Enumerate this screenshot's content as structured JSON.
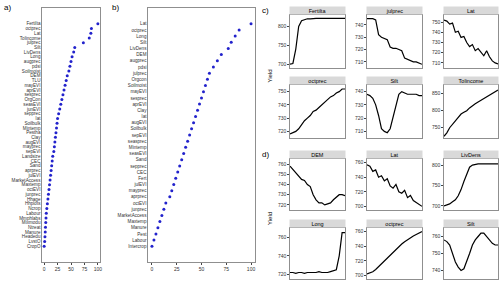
{
  "chart_data": [
    {
      "type": "dot",
      "title": "a)",
      "orientation": "horizontal",
      "color": "#2222cc",
      "marker": "circle",
      "grid": false,
      "categories": [
        "Fertilta",
        "octprec",
        "Lat",
        "Tolincome",
        "julprec",
        "Silt",
        "LivDens",
        "Long",
        "augprec",
        "pdsi",
        "Soilmoist",
        "DEM",
        "TLU",
        "mayEVI",
        "aprEVI",
        "sesprec",
        "OrgCon",
        "seasEVI",
        "junEVI",
        "sepprec",
        "lat",
        "Soilbulk",
        "Mintemp",
        "Pestha",
        "Clay",
        "augEVI",
        "mayprec",
        "sepEVI",
        "Landsize",
        "CEC",
        "Sand",
        "aprprec",
        "julEVI",
        "MarketAccess",
        "Maxtemp",
        "octEVI",
        "junprec",
        "Hhage",
        "Hhplots",
        "Ncrop",
        "Labour",
        "Mmphlabs",
        "Mixmodu",
        "Ntreat",
        "Manure",
        "Headedu",
        "LvstO",
        "CropO"
      ],
      "values": [
        100,
        88,
        87,
        84,
        73,
        57,
        55,
        52,
        50,
        48,
        46,
        43,
        41,
        39,
        37,
        35,
        33,
        31,
        29,
        27,
        25,
        24,
        23,
        22,
        21,
        20,
        19,
        18,
        16,
        15,
        14,
        13,
        12,
        11,
        10,
        9,
        8,
        7,
        6,
        5,
        4,
        3.5,
        3,
        2.5,
        2,
        1.5,
        1,
        0
      ],
      "xlim": [
        -4,
        104
      ],
      "xticks": [
        0,
        25,
        50,
        75,
        100
      ]
    },
    {
      "type": "dot",
      "title": "b)",
      "orientation": "horizontal",
      "color": "#2222cc",
      "marker": "circle",
      "grid": false,
      "categories": [
        "Lat",
        "octprec",
        "Long",
        "Silt",
        "LivDens",
        "DEM",
        "augprec",
        "pdsi",
        "julprec",
        "Orgcon",
        "Soilmoist",
        "mayEVI",
        "sesprec",
        "aprEVI",
        "Clay",
        "lat",
        "augEVI",
        "Soilbulk",
        "sepEVI",
        "seasprec",
        "Mintemp",
        "seasEVI",
        "Sand",
        "sepprec",
        "CEC",
        "Fert",
        "julEVI",
        "mayprec",
        "aprprec",
        "octEVI",
        "junprec",
        "MarketAccess",
        "Maxtemp",
        "Manure",
        "Pest",
        "Labour",
        "Intercrop"
      ],
      "values": [
        100,
        88,
        84,
        80,
        77,
        70,
        66,
        62,
        58,
        56,
        54,
        52,
        50,
        48,
        46,
        44,
        42,
        40,
        38,
        36,
        34,
        32,
        30,
        28,
        26,
        24,
        22,
        20,
        18,
        14,
        12,
        10,
        8,
        6,
        4,
        2,
        0
      ],
      "xlim": [
        -4,
        104
      ],
      "xticks": [
        0,
        25,
        50,
        75,
        100
      ]
    },
    {
      "type": "line",
      "title": "c)",
      "ylabel": "Yield",
      "color": "#000000",
      "tick_labels": "y",
      "grid": false,
      "panels": [
        {
          "name": "Fertilta",
          "values": [
            700,
            702,
            740,
            800,
            815,
            818,
            820,
            820,
            821,
            821,
            821,
            821,
            821,
            821,
            821,
            821,
            821,
            821,
            821,
            821
          ],
          "ylim": [
            690,
            830
          ],
          "yticks": [
            700,
            750,
            800
          ]
        },
        {
          "name": "julprec",
          "values": [
            745,
            745,
            745,
            744,
            732,
            730,
            729,
            728,
            722,
            721,
            721,
            720,
            719,
            713,
            712,
            711,
            710,
            710,
            709,
            708
          ],
          "ylim": [
            705,
            748
          ],
          "yticks": [
            710,
            720,
            730,
            740
          ]
        },
        {
          "name": "Lat",
          "values": [
            752,
            751,
            748,
            749,
            740,
            741,
            735,
            736,
            730,
            726,
            728,
            722,
            724,
            720,
            717,
            722,
            716,
            712,
            710,
            709
          ],
          "ylim": [
            705,
            757
          ],
          "yticks": [
            710,
            720,
            730,
            740,
            750
          ]
        },
        {
          "name": "octprec",
          "values": [
            718,
            719,
            720,
            722,
            725,
            728,
            730,
            732,
            735,
            736,
            738,
            740,
            742,
            744,
            746,
            747,
            749,
            750,
            752,
            752
          ],
          "ylim": [
            715,
            755
          ],
          "yticks": [
            720,
            730,
            740,
            750
          ]
        },
        {
          "name": "Silt",
          "values": [
            738,
            737,
            735,
            730,
            722,
            712,
            710,
            709,
            712,
            720,
            730,
            738,
            740,
            739,
            738,
            738,
            738,
            738,
            737,
            737
          ],
          "ylim": [
            705,
            745
          ],
          "yticks": [
            710,
            720,
            730,
            740
          ]
        },
        {
          "name": "Tolincome",
          "values": [
            725,
            735,
            750,
            760,
            770,
            780,
            790,
            795,
            800,
            808,
            815,
            820,
            825,
            830,
            835,
            840,
            845,
            850,
            855,
            860
          ],
          "ylim": [
            720,
            875
          ],
          "yticks": [
            750,
            800,
            850
          ]
        }
      ]
    },
    {
      "type": "line",
      "title": "d)",
      "ylabel": "Yield",
      "color": "#000000",
      "tick_labels": "y",
      "grid": false,
      "panels": [
        {
          "name": "DEM",
          "values": [
            758,
            755,
            752,
            748,
            745,
            744,
            740,
            738,
            730,
            725,
            722,
            722,
            720,
            721,
            722,
            725,
            728,
            730,
            730,
            729
          ],
          "ylim": [
            715,
            765
          ],
          "yticks": [
            720,
            730,
            740,
            750,
            760
          ]
        },
        {
          "name": "Lat",
          "values": [
            757,
            755,
            748,
            750,
            740,
            742,
            735,
            738,
            728,
            725,
            730,
            720,
            718,
            722,
            712,
            715,
            708,
            705,
            702,
            700
          ],
          "ylim": [
            695,
            765
          ],
          "yticks": [
            700,
            720,
            740,
            760
          ]
        },
        {
          "name": "LivDens",
          "values": [
            700,
            702,
            705,
            710,
            715,
            725,
            740,
            760,
            780,
            795,
            800,
            802,
            803,
            803,
            803,
            803,
            803,
            803,
            803,
            803
          ],
          "ylim": [
            690,
            815
          ],
          "yticks": [
            700,
            750,
            800
          ]
        },
        {
          "name": "Long",
          "values": [
            722,
            722,
            721,
            722,
            722,
            721,
            722,
            722,
            722,
            722,
            723,
            722,
            722,
            722,
            723,
            724,
            725,
            740,
            765,
            765
          ],
          "ylim": [
            715,
            770
          ],
          "yticks": [
            720,
            740,
            760
          ]
        },
        {
          "name": "octprec",
          "values": [
            702,
            703,
            705,
            708,
            712,
            716,
            720,
            724,
            728,
            732,
            736,
            740,
            743,
            746,
            749,
            752,
            754,
            756,
            758,
            760
          ],
          "ylim": [
            695,
            765
          ],
          "yticks": [
            700,
            720,
            740,
            760
          ]
        },
        {
          "name": "Silt",
          "values": [
            758,
            757,
            755,
            750,
            745,
            742,
            740,
            741,
            745,
            750,
            755,
            758,
            760,
            762,
            762,
            760,
            758,
            756,
            755,
            755
          ],
          "ylim": [
            735,
            765
          ],
          "yticks": [
            740,
            750,
            760
          ]
        }
      ]
    }
  ]
}
